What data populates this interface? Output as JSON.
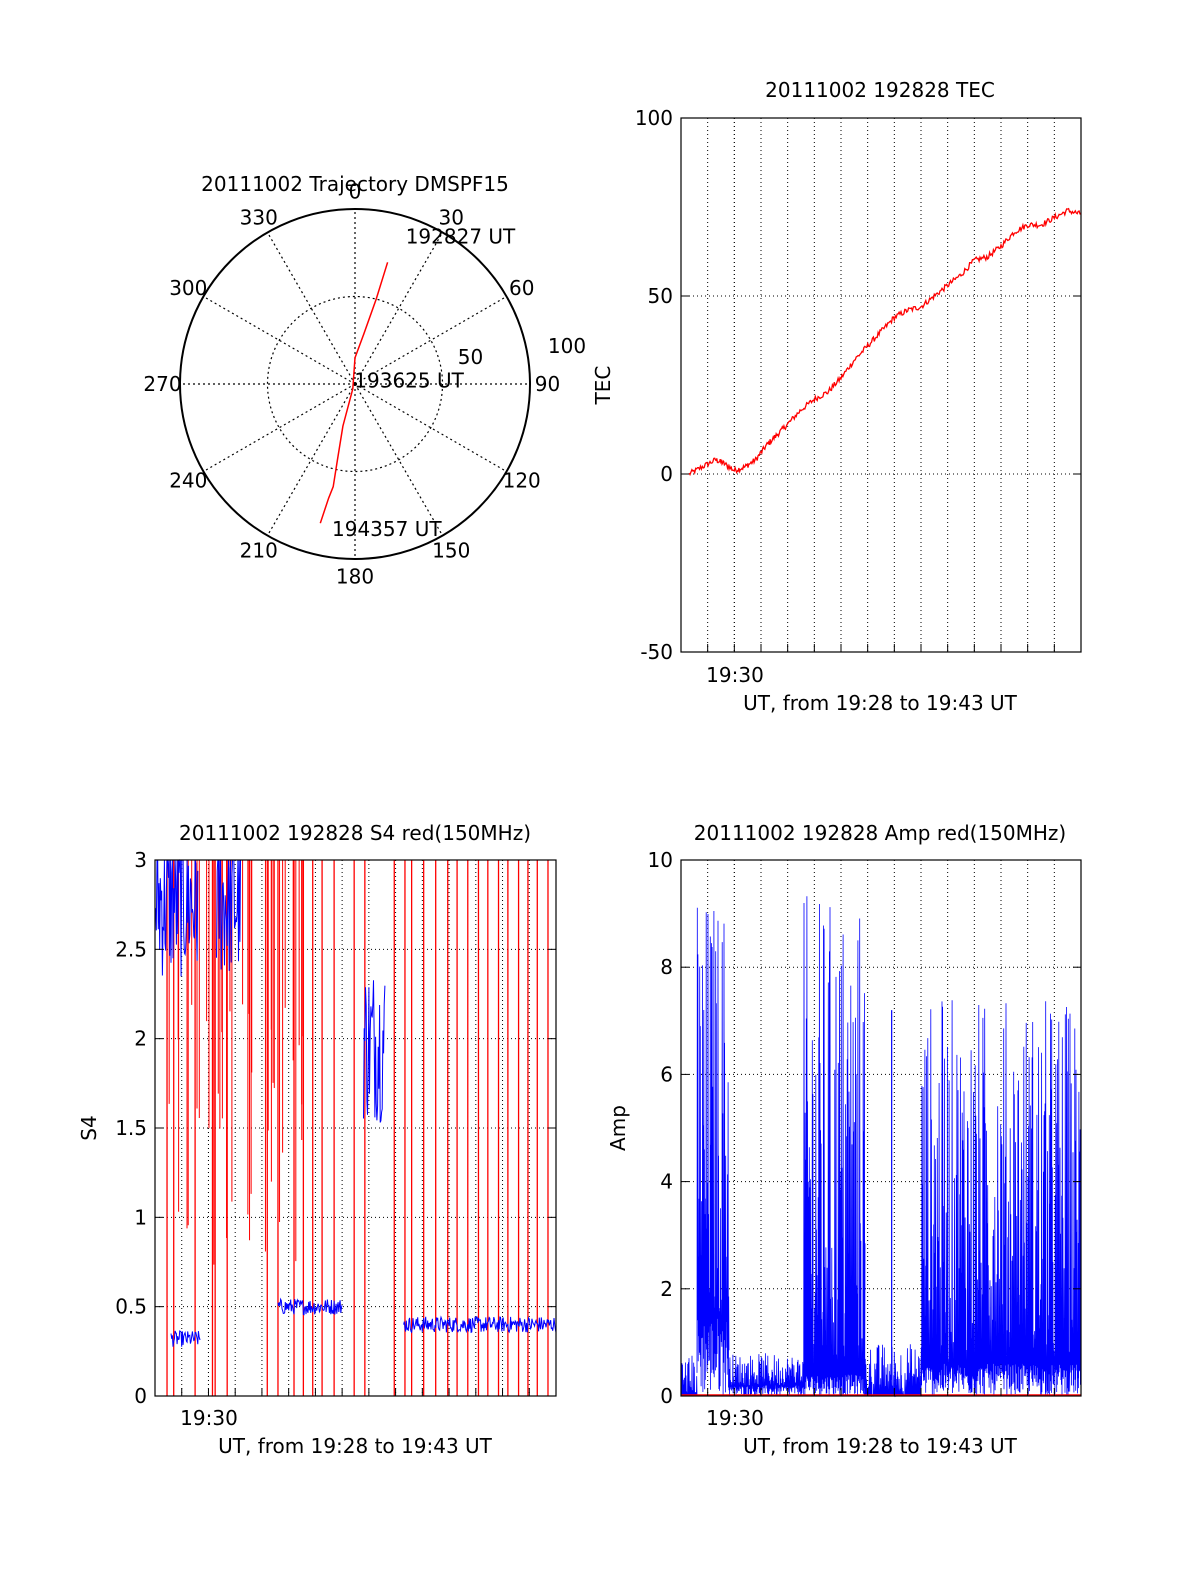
{
  "chart_data": [
    {
      "type": "polar",
      "title": "20111002 Trajectory DMSPF15",
      "angle_ticks": [
        "0",
        "30",
        "60",
        "90",
        "120",
        "150",
        "180",
        "210",
        "240",
        "270",
        "300",
        "330"
      ],
      "angle_values": [
        0,
        30,
        60,
        90,
        120,
        150,
        180,
        210,
        240,
        270,
        300,
        330
      ],
      "radial_ticks": [
        "50",
        "100"
      ],
      "radial_values": [
        50,
        100
      ],
      "trajectory": {
        "color": "#ff0000",
        "points": [
          {
            "az": 15,
            "zen": 72
          },
          {
            "az": 14,
            "zen": 50
          },
          {
            "az": 10,
            "zen": 29
          },
          {
            "az": 0,
            "zen": 15
          },
          {
            "az": 205,
            "zen": 3
          },
          {
            "az": 196,
            "zen": 25
          },
          {
            "az": 193,
            "zen": 45
          },
          {
            "az": 192,
            "zen": 60
          },
          {
            "az": 193,
            "zen": 67
          },
          {
            "az": 194,
            "zen": 82
          }
        ]
      },
      "annotations": [
        {
          "text": "192827 UT",
          "az": 19,
          "zen": 89
        },
        {
          "text": "193625 UT",
          "az": 348,
          "zen": 2
        },
        {
          "text": "194357 UT",
          "az": 189,
          "zen": 84
        }
      ]
    },
    {
      "type": "line",
      "title": "20111002 192828 TEC",
      "ylabel": "TEC",
      "xlabel": "UT, from 19:28 to 19:43 UT",
      "xtick_label": "19:30",
      "xlim": [
        0,
        15
      ],
      "ylim": [
        -50,
        100
      ],
      "yticks": [
        -50,
        0,
        50,
        100
      ],
      "series": [
        {
          "color": "#ff0000",
          "x": [
            0.3,
            0.8,
            1.3,
            1.6,
            2.0,
            2.4,
            2.8,
            3.2,
            3.6,
            4.0,
            4.5,
            5.0,
            5.5,
            6.0,
            6.5,
            7.0,
            7.5,
            8.0,
            8.5,
            9.0,
            9.5,
            10.0,
            10.5,
            11.0,
            11.5,
            12.0,
            12.5,
            13.0,
            13.5,
            14.0,
            14.5,
            15.0
          ],
          "y": [
            0,
            2,
            4,
            3,
            1,
            2,
            4,
            8,
            11,
            14,
            18,
            21,
            23,
            27,
            32,
            36,
            40,
            44,
            46,
            47,
            50,
            53,
            56,
            60,
            61,
            64,
            68,
            70,
            70,
            72,
            74,
            73
          ]
        }
      ]
    },
    {
      "type": "line",
      "title": "20111002 192828 S4 red(150MHz)",
      "ylabel": "S4",
      "xlabel": "UT, from 19:28 to 19:43 UT",
      "xtick_label": "19:30",
      "xlim": [
        0,
        15
      ],
      "ylim": [
        0,
        3
      ],
      "yticks": [
        0,
        0.5,
        1,
        1.5,
        2,
        2.5,
        3
      ],
      "ytick_labels": [
        "0",
        "0.5",
        "1",
        "1.5",
        "2",
        "2.5",
        "3"
      ],
      "red_spikes_x": [
        0.45,
        0.7,
        1.5,
        2.15,
        2.25,
        2.7,
        4.2,
        4.6,
        5.2,
        5.55,
        5.9,
        6.25,
        6.7,
        7.45,
        7.85,
        8.95,
        9.35,
        9.6,
        10.05,
        10.5,
        10.95,
        11.3,
        11.7,
        12.1,
        12.45,
        12.85,
        13.2,
        13.6,
        13.95,
        14.3,
        14.7
      ],
      "blue_segments": [
        {
          "x0": 0.0,
          "x1": 1.6,
          "level": 2.6
        },
        {
          "x0": 0.6,
          "x1": 1.7,
          "level": 0.32
        },
        {
          "x0": 2.3,
          "x1": 3.2,
          "level": 2.6
        },
        {
          "x0": 4.6,
          "x1": 7.0,
          "level": 0.5
        },
        {
          "x0": 7.8,
          "x1": 8.6,
          "level": 1.8
        },
        {
          "x0": 9.3,
          "x1": 15.0,
          "level": 0.4
        }
      ]
    },
    {
      "type": "line",
      "title": "20111002 192828 Amp red(150MHz)",
      "ylabel": "Amp",
      "xlabel": "UT, from 19:28 to 19:43 UT",
      "xtick_label": "19:30",
      "xlim": [
        0,
        15
      ],
      "ylim": [
        0,
        10
      ],
      "yticks": [
        0,
        2,
        4,
        6,
        8,
        10
      ],
      "blue_segments": [
        {
          "x0": 0.0,
          "x1": 0.6,
          "low": 0.0,
          "high": 0.8
        },
        {
          "x0": 0.6,
          "x1": 1.8,
          "low": 1.5,
          "high": 9.5
        },
        {
          "x0": 1.8,
          "x1": 4.6,
          "low": 0.2,
          "high": 0.8
        },
        {
          "x0": 4.6,
          "x1": 6.9,
          "low": 0.4,
          "high": 9.4
        },
        {
          "x0": 6.9,
          "x1": 9.0,
          "low": 0.0,
          "high": 1.0
        },
        {
          "x0": 9.0,
          "x1": 15.0,
          "low": 0.6,
          "high": 7.5
        }
      ],
      "spike": {
        "x": 7.9,
        "value": 7.2
      },
      "red_baseline": 0
    }
  ]
}
